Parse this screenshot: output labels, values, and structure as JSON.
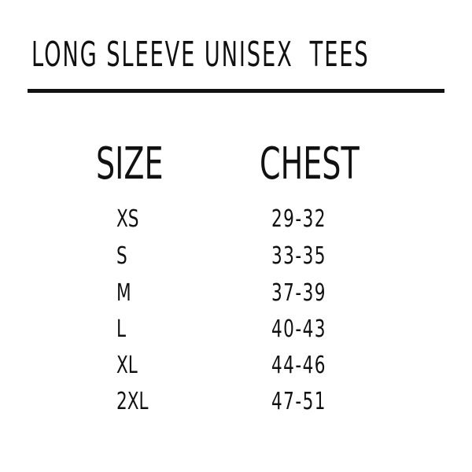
{
  "title": "LONG SLEEVE UNISEX  TEES",
  "table": {
    "headers": [
      "SIZE",
      "CHEST"
    ],
    "rows": [
      {
        "size": "XS",
        "chest": "29-32"
      },
      {
        "size": "S",
        "chest": "33-35"
      },
      {
        "size": "M",
        "chest": "37-39"
      },
      {
        "size": "L",
        "chest": "40-43"
      },
      {
        "size": "XL",
        "chest": "44-46"
      },
      {
        "size": "2XL",
        "chest": "47-51"
      }
    ]
  }
}
